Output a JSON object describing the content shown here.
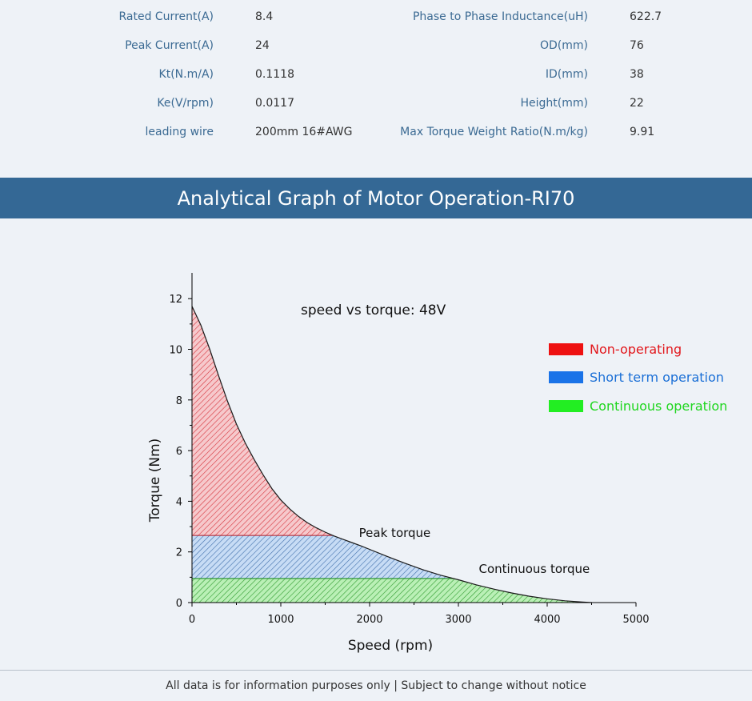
{
  "specs": {
    "left": [
      {
        "label": "Rated Current(A)",
        "value": "8.4"
      },
      {
        "label": "Peak Current(A)",
        "value": "24"
      },
      {
        "label": "Kt(N.m/A)",
        "value": "0.1118"
      },
      {
        "label": "Ke(V/rpm)",
        "value": "0.0117"
      },
      {
        "label": "leading wire",
        "value": "200mm 16#AWG"
      }
    ],
    "right": [
      {
        "label": "Phase to Phase Inductance(uH)",
        "value": "622.7"
      },
      {
        "label": "OD(mm)",
        "value": "76"
      },
      {
        "label": "ID(mm)",
        "value": "38"
      },
      {
        "label": "Height(mm)",
        "value": "22"
      },
      {
        "label": "Max Torque Weight Ratio(N.m/kg)",
        "value": "9.91"
      }
    ]
  },
  "banner": {
    "title": "Analytical Graph of Motor Operation-RI70"
  },
  "footer": {
    "text": "All data is for information purposes only | Subject to change without notice"
  },
  "colors": {
    "banner_bg": "#346895",
    "non_operating": "#ee1111",
    "short_term": "#1a73e8",
    "continuous": "#22ee22"
  },
  "chart_data": {
    "type": "area",
    "title": "speed vs torque: 48V",
    "xlabel": "Speed (rpm)",
    "ylabel": "Torque (Nm)",
    "xlim": [
      0,
      5000
    ],
    "ylim": [
      0,
      13
    ],
    "xticks": [
      0,
      1000,
      2000,
      3000,
      4000,
      5000
    ],
    "yticks": [
      0,
      2,
      4,
      6,
      8,
      10,
      12
    ],
    "curve": {
      "x": [
        0,
        100,
        200,
        300,
        400,
        500,
        600,
        700,
        800,
        900,
        1000,
        1100,
        1200,
        1300,
        1400,
        1500,
        1600,
        1700,
        1800,
        1900,
        2000,
        2200,
        2400,
        2600,
        2800,
        3000,
        3200,
        3400,
        3600,
        3800,
        4000,
        4200,
        4400,
        4500
      ],
      "y": [
        11.7,
        10.95,
        10.0,
        8.95,
        7.95,
        7.05,
        6.3,
        5.65,
        5.05,
        4.5,
        4.05,
        3.7,
        3.4,
        3.15,
        2.95,
        2.78,
        2.63,
        2.5,
        2.37,
        2.24,
        2.1,
        1.82,
        1.55,
        1.3,
        1.08,
        0.9,
        0.7,
        0.53,
        0.38,
        0.25,
        0.15,
        0.07,
        0.02,
        0.0
      ]
    },
    "peak_torque": 2.65,
    "continuous_torque": 0.95,
    "annotations": [
      {
        "text": "Peak torque",
        "x": 1880,
        "y": 2.65
      },
      {
        "text": "Continuous torque",
        "x": 3230,
        "y": 1.05
      }
    ],
    "legend": [
      {
        "label": "Non-operating",
        "color": "#ee1111"
      },
      {
        "label": "Short term operation",
        "color": "#1a73e8"
      },
      {
        "label": "Continuous operation",
        "color": "#22ee22"
      }
    ],
    "legend_position": "right"
  }
}
